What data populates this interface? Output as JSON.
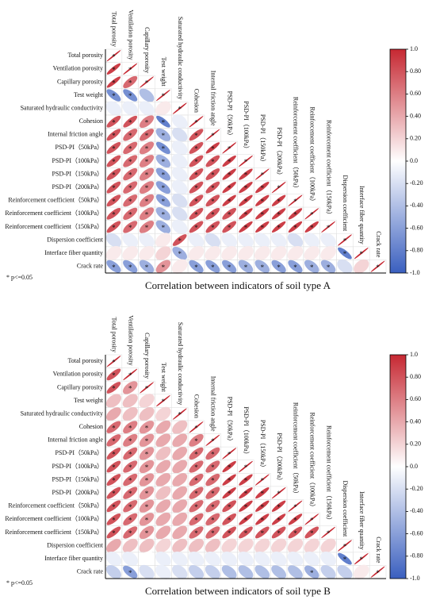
{
  "chart_data": [
    {
      "type": "corrplot",
      "title": "Correlation between indicators of soil type A",
      "note": "* p<=0.05",
      "star": "*",
      "variables": [
        "Total porosity",
        "Ventilation porosity",
        "Capillary porosity",
        "Test weight",
        "Saturated hydraulic conductivity",
        "Cohesion",
        "Internal friction angle",
        "PSD-PI（50kPa）",
        "PSD-PI（100kPa）",
        "PSD-PI（150kPa）",
        "PSD-PI（200kPa）",
        "Reinforcement coefficient（50kPa）",
        "Reinforcement coefficient（100kPa）",
        "Reinforcement coefficient（150kPa）",
        "Dispersion coefficient",
        "Interface fiber quantity",
        "Crack rate"
      ],
      "values": [
        [
          1
        ],
        [
          0.9,
          1
        ],
        [
          0.9,
          0.7,
          1
        ],
        [
          -0.7,
          -0.7,
          -0.4,
          1
        ],
        [
          -0.1,
          -0.1,
          -0.1,
          0.1,
          1
        ],
        [
          0.8,
          0.8,
          0.6,
          -0.8,
          -0.1,
          1
        ],
        [
          0.8,
          0.7,
          0.7,
          -0.5,
          -0.2,
          0.8,
          1
        ],
        [
          0.8,
          0.7,
          0.6,
          -0.7,
          -0.1,
          0.8,
          0.9,
          1
        ],
        [
          0.8,
          0.7,
          0.6,
          -0.5,
          -0.1,
          0.8,
          0.8,
          0.9,
          1
        ],
        [
          0.8,
          0.7,
          0.6,
          -0.6,
          -0.1,
          0.8,
          0.8,
          0.9,
          0.9,
          1
        ],
        [
          0.8,
          0.7,
          0.6,
          -0.6,
          -0.1,
          0.8,
          0.8,
          0.9,
          0.9,
          0.9,
          1
        ],
        [
          0.8,
          0.7,
          0.6,
          -0.6,
          -0.2,
          0.8,
          0.8,
          0.9,
          0.9,
          0.9,
          0.9,
          1
        ],
        [
          0.8,
          0.7,
          0.6,
          -0.5,
          -0.2,
          0.8,
          0.8,
          0.8,
          0.9,
          0.9,
          0.9,
          0.9,
          1
        ],
        [
          0.8,
          0.7,
          0.6,
          -0.5,
          -0.1,
          0.8,
          0.8,
          0.8,
          0.9,
          0.9,
          0.9,
          0.9,
          0.9,
          1
        ],
        [
          -0.2,
          -0.1,
          -0.1,
          0.1,
          0.8,
          -0.1,
          -0.2,
          -0.1,
          -0.1,
          -0.1,
          -0.1,
          -0.2,
          -0.1,
          -0.1,
          1
        ],
        [
          0.1,
          0.1,
          0.1,
          0.2,
          -0.5,
          0.1,
          0.1,
          0.1,
          0.1,
          0.1,
          0.1,
          0.1,
          0.1,
          0.1,
          -0.8,
          1
        ],
        [
          -0.6,
          -0.6,
          -0.5,
          0.5,
          0.1,
          -0.6,
          -0.6,
          -0.6,
          -0.5,
          -0.5,
          -0.6,
          -0.6,
          -0.5,
          -0.5,
          -0.2,
          0.2,
          1
        ]
      ],
      "significant": [
        [
          1
        ],
        [
          1,
          1
        ],
        [
          1,
          1,
          1
        ],
        [
          1,
          1,
          0,
          1
        ],
        [
          0,
          0,
          0,
          0,
          1
        ],
        [
          1,
          1,
          1,
          1,
          0,
          1
        ],
        [
          1,
          1,
          1,
          1,
          0,
          1,
          1
        ],
        [
          1,
          1,
          1,
          1,
          0,
          1,
          1,
          1
        ],
        [
          1,
          1,
          1,
          1,
          0,
          1,
          1,
          1,
          1
        ],
        [
          1,
          1,
          1,
          1,
          0,
          1,
          1,
          1,
          1,
          1
        ],
        [
          1,
          1,
          1,
          1,
          0,
          1,
          1,
          1,
          1,
          1,
          1
        ],
        [
          1,
          1,
          1,
          1,
          0,
          1,
          1,
          1,
          1,
          1,
          1,
          1
        ],
        [
          1,
          1,
          1,
          1,
          0,
          1,
          1,
          1,
          1,
          1,
          1,
          1,
          1
        ],
        [
          1,
          1,
          1,
          1,
          0,
          1,
          1,
          1,
          1,
          1,
          1,
          1,
          1,
          1
        ],
        [
          0,
          0,
          0,
          0,
          1,
          0,
          0,
          0,
          0,
          0,
          0,
          0,
          0,
          0,
          1
        ],
        [
          0,
          0,
          0,
          0,
          1,
          0,
          0,
          0,
          0,
          0,
          0,
          0,
          0,
          0,
          1,
          1
        ],
        [
          1,
          1,
          1,
          1,
          0,
          1,
          1,
          1,
          1,
          1,
          1,
          1,
          1,
          1,
          0,
          0,
          1
        ]
      ],
      "clim": [
        -1,
        1
      ],
      "cticks": [
        {
          "value": 1,
          "label": "1.0"
        },
        {
          "value": 0.8,
          "label": "0.80"
        },
        {
          "value": 0.6,
          "label": "0.60"
        },
        {
          "value": 0.4,
          "label": "0.40"
        },
        {
          "value": 0.2,
          "label": "0.20"
        },
        {
          "value": 0,
          "label": "0.0"
        },
        {
          "value": -0.2,
          "label": "-0.20"
        },
        {
          "value": -0.4,
          "label": "-0.40"
        },
        {
          "value": -0.6,
          "label": "-0.60"
        },
        {
          "value": -0.8,
          "label": "-0.80"
        },
        {
          "value": -1,
          "label": "-1.0"
        }
      ],
      "colors": {
        "low": "#3a5fbf",
        "mid": "#ffffff",
        "high": "#c62832"
      }
    },
    {
      "type": "corrplot",
      "title": "Correlation between indicators of soil type B",
      "note": "* p<=0.05",
      "star": "*",
      "variables": [
        "Total porosity",
        "Ventilation porosity",
        "Capillary porosity",
        "Test weight",
        "Saturated hydraulic conductivity",
        "Cohesion",
        "Internal friction angle",
        "PSD-PI（50kPa）",
        "PSD-PI（100kPa）",
        "PSD-PI（150kPa）",
        "PSD-PI（200kPa）",
        "Reinforcement coefficient（50kPa）",
        "Reinforcement coefficient（100kPa）",
        "Reinforcement coefficient（150kPa）",
        "Dispersion coefficient",
        "Interface fiber quantity",
        "Crack rate"
      ],
      "values": [
        [
          1
        ],
        [
          0.8,
          1
        ],
        [
          0.8,
          0.5,
          1
        ],
        [
          0.3,
          0.3,
          0.2,
          1
        ],
        [
          0.4,
          0.3,
          0.3,
          0.2,
          1
        ],
        [
          0.7,
          0.6,
          0.5,
          0.4,
          0.3,
          1
        ],
        [
          0.7,
          0.6,
          0.5,
          0.4,
          0.4,
          0.6,
          1
        ],
        [
          0.8,
          0.7,
          0.5,
          0.3,
          0.4,
          0.7,
          0.7,
          1
        ],
        [
          0.8,
          0.7,
          0.5,
          0.4,
          0.4,
          0.7,
          0.7,
          0.9,
          1
        ],
        [
          0.8,
          0.7,
          0.5,
          0.4,
          0.4,
          0.7,
          0.7,
          0.9,
          0.9,
          1
        ],
        [
          0.8,
          0.7,
          0.5,
          0.3,
          0.4,
          0.7,
          0.7,
          0.9,
          0.9,
          0.9,
          1
        ],
        [
          0.8,
          0.7,
          0.5,
          0.4,
          0.4,
          0.7,
          0.7,
          0.8,
          0.9,
          0.9,
          0.9,
          1
        ],
        [
          0.8,
          0.7,
          0.5,
          0.4,
          0.4,
          0.7,
          0.7,
          0.8,
          0.9,
          0.9,
          0.9,
          0.9,
          1
        ],
        [
          0.8,
          0.7,
          0.5,
          0.4,
          0.4,
          0.7,
          0.7,
          0.8,
          0.8,
          0.8,
          0.8,
          0.8,
          0.8,
          1
        ],
        [
          0.4,
          0.3,
          0.3,
          0.2,
          0.3,
          0.3,
          0.3,
          0.2,
          0.2,
          0.2,
          0.2,
          0.2,
          0.2,
          0.2,
          1
        ],
        [
          -0.1,
          -0.1,
          0.0,
          -0.1,
          -0.1,
          -0.1,
          -0.1,
          -0.1,
          -0.1,
          -0.1,
          -0.1,
          -0.1,
          -0.1,
          -0.1,
          -0.8,
          1
        ],
        [
          -0.3,
          -0.6,
          -0.2,
          -0.1,
          -0.2,
          -0.3,
          -0.3,
          -0.4,
          -0.4,
          -0.4,
          -0.4,
          -0.4,
          -0.5,
          -0.3,
          -0.3,
          0.1,
          1
        ]
      ],
      "significant": [
        [
          1
        ],
        [
          1,
          1
        ],
        [
          1,
          1,
          1
        ],
        [
          0,
          0,
          0,
          1
        ],
        [
          0,
          0,
          0,
          0,
          1
        ],
        [
          1,
          1,
          1,
          0,
          0,
          1
        ],
        [
          1,
          1,
          1,
          0,
          0,
          1,
          1
        ],
        [
          1,
          1,
          1,
          0,
          0,
          1,
          1,
          1
        ],
        [
          1,
          1,
          1,
          0,
          0,
          1,
          1,
          1,
          1
        ],
        [
          1,
          1,
          1,
          0,
          0,
          1,
          1,
          1,
          1,
          1
        ],
        [
          1,
          1,
          1,
          0,
          0,
          1,
          1,
          1,
          1,
          1,
          1
        ],
        [
          1,
          1,
          1,
          0,
          0,
          1,
          1,
          1,
          1,
          1,
          1,
          1
        ],
        [
          1,
          1,
          1,
          0,
          0,
          1,
          1,
          1,
          1,
          1,
          1,
          1,
          1
        ],
        [
          1,
          1,
          1,
          0,
          0,
          1,
          1,
          1,
          1,
          1,
          1,
          1,
          1,
          1
        ],
        [
          0,
          0,
          0,
          0,
          0,
          0,
          0,
          0,
          0,
          0,
          0,
          0,
          0,
          0,
          1
        ],
        [
          0,
          0,
          0,
          0,
          0,
          0,
          0,
          0,
          0,
          0,
          0,
          0,
          0,
          0,
          1,
          1
        ],
        [
          0,
          1,
          0,
          0,
          0,
          0,
          0,
          0,
          0,
          0,
          0,
          0,
          1,
          0,
          0,
          0,
          1
        ]
      ],
      "clim": [
        -1,
        1
      ],
      "cticks": [
        {
          "value": 1,
          "label": "1.0"
        },
        {
          "value": 0.8,
          "label": "0.80"
        },
        {
          "value": 0.6,
          "label": "0.60"
        },
        {
          "value": 0.4,
          "label": "0.40"
        },
        {
          "value": 0.2,
          "label": "0.20"
        },
        {
          "value": 0,
          "label": "0.0"
        },
        {
          "value": -0.2,
          "label": "-0.20"
        },
        {
          "value": -0.4,
          "label": "-0.40"
        },
        {
          "value": -0.6,
          "label": "-0.60"
        },
        {
          "value": -0.8,
          "label": "-0.80"
        },
        {
          "value": -1,
          "label": "-1.0"
        }
      ],
      "colors": {
        "low": "#3a5fbf",
        "mid": "#ffffff",
        "high": "#c62832"
      }
    }
  ]
}
